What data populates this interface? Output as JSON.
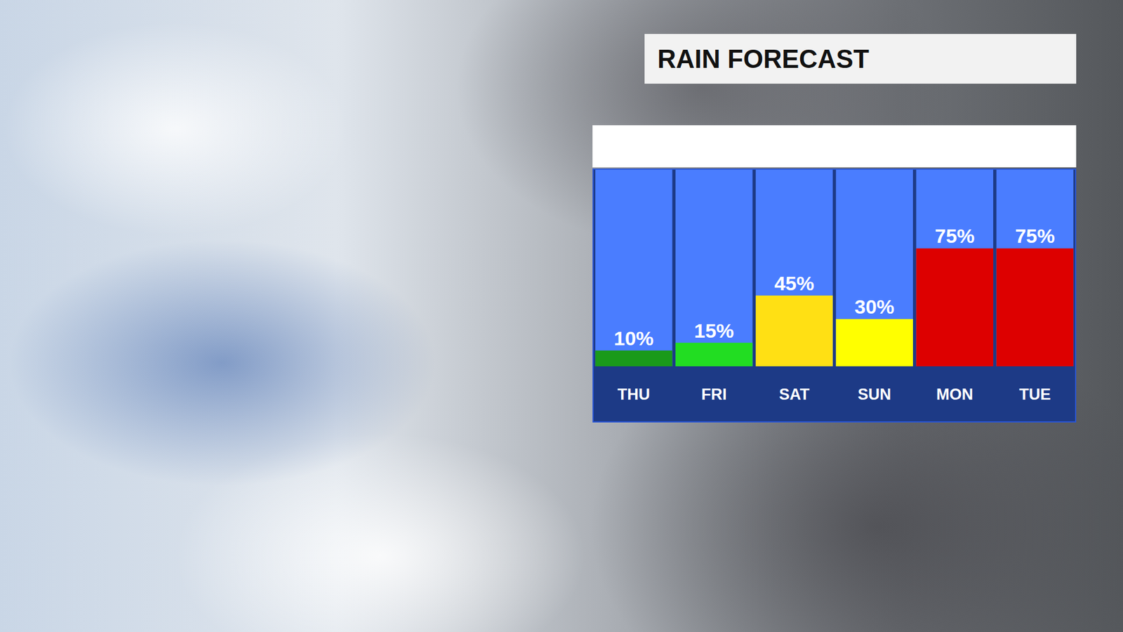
{
  "chart_data": {
    "type": "bar",
    "title": "RAIN FORECAST",
    "categories": [
      "THU",
      "FRI",
      "SAT",
      "SUN",
      "MON",
      "TUE"
    ],
    "values": [
      10,
      15,
      45,
      30,
      75,
      75
    ],
    "value_labels": [
      "10%",
      "15%",
      "45%",
      "30%",
      "75%",
      "75%"
    ],
    "colors": [
      "#1a9a1a",
      "#22dd22",
      "#ffe014",
      "#ffff00",
      "#dd0000",
      "#dd0000"
    ],
    "ylim": [
      0,
      125
    ],
    "grid": false,
    "data_labels": true,
    "tick_labels": "x"
  }
}
